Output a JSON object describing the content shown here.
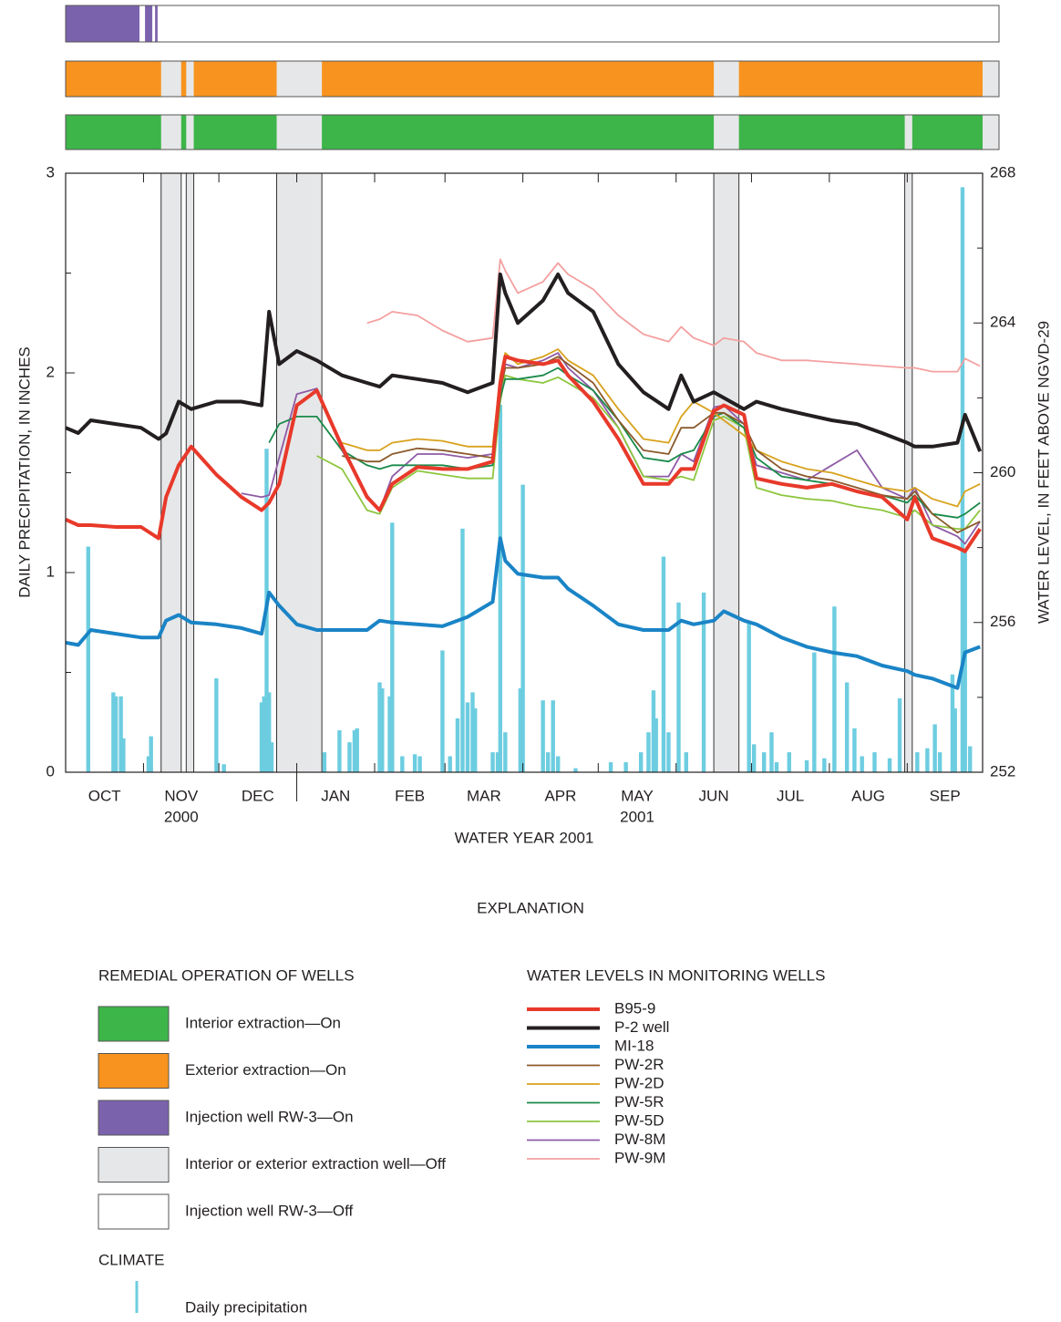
{
  "chart_data": {
    "type": "line",
    "y_label": "DAILY PRECIPITATION, IN INCHES",
    "y2_label": "WATER LEVEL, IN FEET ABOVE NGVD-29",
    "x_label": "WATER YEAR 2001",
    "xlim": [
      0,
      365
    ],
    "xticks": [
      {
        "value": 15.5,
        "label": "OCT"
      },
      {
        "value": 46,
        "label": "NOV"
      },
      {
        "value": 76.5,
        "label": "DEC"
      },
      {
        "value": 107.5,
        "label": "JAN"
      },
      {
        "value": 137,
        "label": "FEB"
      },
      {
        "value": 166.5,
        "label": "MAR"
      },
      {
        "value": 197,
        "label": "APR"
      },
      {
        "value": 227.5,
        "label": "MAY"
      },
      {
        "value": 258,
        "label": "JUN"
      },
      {
        "value": 288.5,
        "label": "JUL"
      },
      {
        "value": 319.5,
        "label": "AUG"
      },
      {
        "value": 350,
        "label": "SEP"
      }
    ],
    "minor_xticks": [
      31,
      61,
      92,
      123,
      151,
      182,
      212,
      243,
      273,
      304,
      335
    ],
    "year_divider": 92,
    "x_sublabels": [
      {
        "value": 46,
        "label": "2000"
      },
      {
        "value": 227.5,
        "label": "2001"
      }
    ],
    "ylim": [
      0,
      3
    ],
    "yticks": [
      0,
      1,
      2,
      3
    ],
    "minor_yticks": [
      0.5,
      1.5,
      2.5
    ],
    "y2lim": [
      252,
      268
    ],
    "y2ticks": [
      252,
      256,
      260,
      264,
      268
    ],
    "minor_y2ticks": [
      254,
      258,
      262,
      266
    ],
    "x": [
      0,
      5,
      10,
      20,
      30,
      37,
      40,
      45,
      50,
      60,
      70,
      78,
      81,
      85,
      92,
      100,
      110,
      120,
      125,
      130,
      140,
      150,
      160,
      170,
      173,
      175,
      180,
      190,
      196,
      200,
      210,
      220,
      230,
      240,
      245,
      250,
      258,
      262,
      270,
      275,
      285,
      295,
      305,
      315,
      325,
      335,
      338,
      345,
      355,
      358,
      364
    ],
    "series": [
      {
        "name": "B95-9",
        "color": "#e8392a",
        "width": 4,
        "axis": "y2",
        "values": [
          258.75,
          258.6,
          258.6,
          258.55,
          258.55,
          258.25,
          259.35,
          260.2,
          260.7,
          259.95,
          259.35,
          259.0,
          259.2,
          259.7,
          261.8,
          262.2,
          260.7,
          259.35,
          259.0,
          259.7,
          260.15,
          260.1,
          260.1,
          260.3,
          262.4,
          263.1,
          263.0,
          262.9,
          263.0,
          262.6,
          261.9,
          260.9,
          259.7,
          259.7,
          260.1,
          260.1,
          261.65,
          261.8,
          261.55,
          259.85,
          259.7,
          259.6,
          259.7,
          259.5,
          259.35,
          258.75,
          259.35,
          258.25,
          258.0,
          257.9,
          258.5
        ]
      },
      {
        "name": "P-2 well",
        "color": "#231f20",
        "width": 4,
        "axis": "y2",
        "values": [
          261.2,
          261.06,
          261.4,
          261.3,
          261.2,
          260.9,
          261.05,
          261.9,
          261.7,
          261.9,
          261.9,
          261.8,
          264.3,
          262.9,
          263.25,
          263.0,
          262.6,
          262.4,
          262.3,
          262.6,
          262.5,
          262.4,
          262.15,
          262.4,
          265.3,
          264.8,
          264.0,
          264.6,
          265.3,
          264.8,
          264.3,
          262.9,
          262.15,
          261.7,
          262.6,
          261.9,
          262.15,
          262.0,
          261.7,
          261.9,
          261.7,
          261.55,
          261.4,
          261.3,
          261.06,
          260.8,
          260.7,
          260.7,
          260.8,
          261.55,
          260.57
        ]
      },
      {
        "name": "MI-18",
        "color": "#1a84c6",
        "width": 4,
        "axis": "y2",
        "values": [
          255.46,
          255.4,
          255.8,
          255.7,
          255.6,
          255.6,
          256.05,
          256.2,
          256.0,
          255.95,
          255.85,
          255.7,
          256.8,
          256.45,
          255.95,
          255.8,
          255.8,
          255.8,
          256.05,
          256.0,
          255.95,
          255.9,
          256.15,
          256.55,
          258.25,
          257.65,
          257.3,
          257.2,
          257.2,
          256.9,
          256.45,
          255.95,
          255.8,
          255.8,
          256.05,
          255.95,
          256.05,
          256.3,
          256.05,
          255.95,
          255.6,
          255.35,
          255.2,
          255.1,
          254.85,
          254.7,
          254.6,
          254.5,
          254.25,
          255.2,
          255.35
        ]
      },
      {
        "name": "PW-2R",
        "color": "#8b5a2b",
        "width": 1.8,
        "axis": "y2",
        "values": [
          null,
          null,
          null,
          null,
          null,
          null,
          null,
          null,
          null,
          null,
          null,
          null,
          null,
          null,
          null,
          null,
          260.45,
          260.3,
          260.3,
          260.5,
          260.65,
          260.6,
          260.5,
          260.4,
          262.2,
          262.8,
          262.8,
          262.9,
          263.1,
          262.9,
          262.4,
          261.4,
          260.6,
          260.5,
          261.2,
          261.2,
          261.6,
          261.6,
          261.3,
          260.6,
          260.1,
          259.9,
          259.8,
          259.6,
          259.4,
          259.3,
          259.5,
          258.9,
          258.4,
          258.5,
          258.7
        ]
      },
      {
        "name": "PW-2D",
        "color": "#d8a21c",
        "width": 1.8,
        "axis": "y2",
        "values": [
          null,
          null,
          null,
          null,
          null,
          null,
          null,
          null,
          null,
          null,
          null,
          null,
          null,
          null,
          null,
          null,
          260.8,
          260.6,
          260.6,
          260.8,
          260.9,
          260.85,
          260.7,
          260.7,
          262.6,
          263.2,
          262.9,
          263.1,
          263.3,
          263.0,
          262.6,
          261.7,
          260.9,
          260.8,
          261.5,
          261.9,
          261.6,
          261.4,
          261.0,
          260.6,
          260.3,
          260.1,
          260.0,
          259.8,
          259.6,
          259.5,
          259.6,
          259.3,
          259.1,
          259.5,
          259.7
        ]
      },
      {
        "name": "PW-5R",
        "color": "#1a8a4a",
        "width": 1.8,
        "axis": "y2",
        "values": [
          null,
          null,
          null,
          null,
          null,
          null,
          null,
          null,
          null,
          null,
          null,
          null,
          260.8,
          261.3,
          261.5,
          261.5,
          260.6,
          260.2,
          260.1,
          260.2,
          260.2,
          260.2,
          260.1,
          260.2,
          262.0,
          262.5,
          262.5,
          262.6,
          262.8,
          262.6,
          262.2,
          261.4,
          260.4,
          260.3,
          260.5,
          260.6,
          261.5,
          261.6,
          261.2,
          260.4,
          259.9,
          259.8,
          259.7,
          259.5,
          259.4,
          259.2,
          259.4,
          258.9,
          258.8,
          258.9,
          259.2
        ]
      },
      {
        "name": "PW-5D",
        "color": "#8dc63f",
        "width": 1.8,
        "axis": "y2",
        "values": [
          null,
          null,
          null,
          null,
          null,
          null,
          null,
          null,
          null,
          null,
          null,
          null,
          null,
          null,
          null,
          260.45,
          260.1,
          259.0,
          258.9,
          259.6,
          260.05,
          259.95,
          259.85,
          259.85,
          261.9,
          262.6,
          262.5,
          262.4,
          262.55,
          262.4,
          262.0,
          261.2,
          259.9,
          259.8,
          259.9,
          259.8,
          261.4,
          261.5,
          261.2,
          259.6,
          259.4,
          259.3,
          259.25,
          259.1,
          259.0,
          258.8,
          259.0,
          258.6,
          258.5,
          258.5,
          259.0
        ]
      },
      {
        "name": "PW-8M",
        "color": "#8e5ba6",
        "width": 1.8,
        "axis": "y2",
        "values": [
          null,
          null,
          null,
          null,
          null,
          null,
          null,
          null,
          null,
          null,
          259.45,
          259.35,
          259.4,
          260.4,
          262.1,
          262.25,
          260.6,
          259.4,
          259.0,
          259.9,
          260.5,
          260.5,
          260.4,
          260.5,
          262.1,
          262.9,
          262.8,
          263.0,
          263.2,
          262.8,
          262.2,
          261.2,
          259.9,
          259.9,
          260.5,
          260.3,
          261.75,
          261.8,
          261.3,
          260.2,
          260.0,
          259.8,
          260.2,
          260.6,
          259.6,
          259.3,
          259.6,
          258.6,
          258.3,
          258.1,
          258.7
        ]
      },
      {
        "name": "PW-9M",
        "color": "#f4a0a0",
        "width": 1.8,
        "axis": "y2",
        "values": [
          null,
          null,
          null,
          null,
          null,
          null,
          null,
          null,
          null,
          null,
          null,
          null,
          null,
          null,
          null,
          null,
          null,
          264.0,
          264.1,
          264.3,
          264.2,
          263.8,
          263.5,
          263.6,
          265.7,
          265.4,
          264.8,
          265.1,
          265.6,
          265.3,
          264.9,
          264.2,
          263.7,
          263.5,
          263.9,
          263.6,
          263.4,
          263.6,
          263.5,
          263.2,
          263.0,
          263.0,
          262.95,
          262.9,
          262.85,
          262.8,
          262.8,
          262.7,
          262.7,
          263.05,
          262.85
        ]
      }
    ],
    "precipitation": {
      "name": "Daily precipitation",
      "color": "#6dcde0",
      "x": [
        9,
        19,
        20,
        22,
        23,
        33,
        34,
        60,
        63,
        78,
        79,
        80,
        81,
        82,
        103,
        109,
        113,
        115,
        116,
        125,
        126,
        129,
        130,
        134,
        139,
        141,
        150,
        153,
        156,
        158,
        160,
        162,
        163,
        170,
        172,
        173,
        175,
        181,
        182,
        190,
        192,
        194,
        196,
        203,
        217,
        223,
        229,
        232,
        234,
        235,
        238,
        240,
        244,
        247,
        254,
        272,
        274,
        278,
        281,
        283,
        288,
        295,
        298,
        302,
        306,
        311,
        314,
        317,
        322,
        328,
        332,
        339,
        343,
        346,
        348,
        353,
        354,
        357,
        358,
        360
      ],
      "values": [
        1.13,
        0.4,
        0.38,
        0.38,
        0.17,
        0.08,
        0.18,
        0.47,
        0.04,
        0.35,
        0.38,
        1.62,
        0.4,
        0.15,
        0.1,
        0.21,
        0.15,
        0.21,
        0.22,
        0.45,
        0.42,
        0.38,
        1.25,
        0.08,
        0.09,
        0.08,
        0.61,
        0.08,
        0.27,
        1.22,
        0.35,
        0.4,
        0.32,
        0.1,
        0.1,
        1.84,
        0.2,
        0.42,
        1.44,
        0.36,
        0.1,
        0.36,
        0.08,
        0.02,
        0.05,
        0.05,
        0.1,
        0.2,
        0.41,
        0.27,
        1.08,
        0.2,
        0.85,
        0.1,
        0.9,
        0.75,
        0.14,
        0.1,
        0.2,
        0.05,
        0.1,
        0.06,
        0.6,
        0.07,
        0.83,
        0.45,
        0.22,
        0.08,
        0.1,
        0.07,
        0.37,
        0.1,
        0.12,
        0.24,
        0.1,
        0.49,
        0.32,
        2.93,
        1.1,
        0.13
      ]
    },
    "off_legend": {
      "name": "Interior or exterior extraction well—Off",
      "color": "#e6e7e8"
    },
    "off_periods": [
      [
        38,
        46
      ],
      [
        48,
        51
      ],
      [
        84,
        102
      ],
      [
        258,
        268
      ],
      [
        334,
        337
      ]
    ],
    "injection_off_legend": {
      "name": "Injection well RW-3—Off",
      "color": "#ffffff"
    },
    "operations": [
      {
        "name": "Injection well RW-3—On",
        "color": "#7b62ad",
        "background": "#ffffff",
        "periods": [
          [
            0,
            29.4
          ],
          [
            31.6,
            34.5
          ],
          [
            35.6,
            36.6
          ]
        ]
      },
      {
        "name": "Exterior extraction—On",
        "color": "#f7931e",
        "background": "#e6e7e8",
        "periods": [
          [
            0,
            38
          ],
          [
            46,
            48
          ],
          [
            51,
            84
          ],
          [
            102,
            258
          ],
          [
            268,
            365
          ]
        ]
      },
      {
        "name": "Interior extraction—On",
        "color": "#3db549",
        "background": "#e6e7e8",
        "periods": [
          [
            0,
            38
          ],
          [
            46,
            48
          ],
          [
            51,
            84
          ],
          [
            102,
            258
          ],
          [
            268,
            334
          ],
          [
            337,
            365
          ]
        ]
      }
    ],
    "explanation": {
      "title": "EXPLANATION",
      "operation_title": "REMEDIAL OPERATION OF WELLS",
      "water_title": "WATER LEVELS IN MONITORING WELLS",
      "climate_title": "CLIMATE"
    }
  }
}
